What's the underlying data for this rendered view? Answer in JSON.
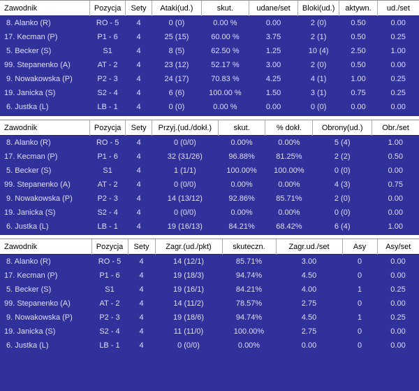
{
  "colors": {
    "background": "#31319c",
    "header_bg": "#ffffff",
    "header_text": "#000000",
    "row_text": "#dedef8",
    "header_separator": "#ababab",
    "header_top_border": "#8f8f8f"
  },
  "tables": [
    {
      "columns": [
        "Zawodnik",
        "Pozycja",
        "Sety",
        "Ataki(ud.)",
        "skut.",
        "udane/set",
        "Bloki(ud.)",
        "aktywn.",
        "ud./set"
      ],
      "rows": [
        [
          " 8. Alanko (R)",
          "RO - 5",
          "4",
          "0 (0)",
          "0.00 %",
          "0.00",
          "2 (0)",
          "0.50",
          "0.00"
        ],
        [
          "17. Kecman (P)",
          "P1 - 6",
          "4",
          "25 (15)",
          "60.00 %",
          "3.75",
          "2 (1)",
          "0.50",
          "0.25"
        ],
        [
          " 5. Becker (S)",
          "S1",
          "4",
          "8 (5)",
          "62.50 %",
          "1.25",
          "10 (4)",
          "2.50",
          "1.00"
        ],
        [
          "99. Stepanenko (A)",
          "AT - 2",
          "4",
          "23 (12)",
          "52.17 %",
          "3.00",
          "2 (0)",
          "0.50",
          "0.00"
        ],
        [
          " 9. Nowakowska (P)",
          "P2 - 3",
          "4",
          "24 (17)",
          "70.83 %",
          "4.25",
          "4 (1)",
          "1.00",
          "0.25"
        ],
        [
          "19. Janicka (S)",
          "S2 - 4",
          "4",
          "6 (6)",
          "100.00 %",
          "1.50",
          "3 (1)",
          "0.75",
          "0.25"
        ],
        [
          " 6. Justka (L)",
          "LB - 1",
          "4",
          "0 (0)",
          "0.00 %",
          "0.00",
          "0 (0)",
          "0.00",
          "0.00"
        ]
      ]
    },
    {
      "columns": [
        "Zawodnik",
        "Pozycja",
        "Sety",
        "Przyj.(ud./dokł.)",
        "skut.",
        "% dokł.",
        "Obrony(ud.)",
        "Obr./set"
      ],
      "rows": [
        [
          " 8. Alanko (R)",
          "RO - 5",
          "4",
          "0 (0/0)",
          "0.00%",
          "0.00%",
          "5 (4)",
          "1.00"
        ],
        [
          "17. Kecman (P)",
          "P1 - 6",
          "4",
          "32 (31/26)",
          "96.88%",
          "81.25%",
          "2 (2)",
          "0.50"
        ],
        [
          " 5. Becker (S)",
          "S1",
          "4",
          "1 (1/1)",
          "100.00%",
          "100.00%",
          "0 (0)",
          "0.00"
        ],
        [
          "99. Stepanenko (A)",
          "AT - 2",
          "4",
          "0 (0/0)",
          "0.00%",
          "0.00%",
          "4 (3)",
          "0.75"
        ],
        [
          " 9. Nowakowska (P)",
          "P2 - 3",
          "4",
          "14 (13/12)",
          "92.86%",
          "85.71%",
          "2 (0)",
          "0.00"
        ],
        [
          "19. Janicka (S)",
          "S2 - 4",
          "4",
          "0 (0/0)",
          "0.00%",
          "0.00%",
          "0 (0)",
          "0.00"
        ],
        [
          " 6. Justka (L)",
          "LB - 1",
          "4",
          "19 (16/13)",
          "84.21%",
          "68.42%",
          "6 (4)",
          "1.00"
        ]
      ]
    },
    {
      "columns": [
        "Zawodnik",
        "Pozycja",
        "Sety",
        "Zagr.(ud./pkt)",
        "skuteczn.",
        "Zagr.ud./set",
        "Asy",
        "Asy/set"
      ],
      "rows": [
        [
          " 8. Alanko (R)",
          "RO - 5",
          "4",
          "14 (12/1)",
          "85.71%",
          "3.00",
          "0",
          "0.00"
        ],
        [
          "17. Kecman (P)",
          "P1 - 6",
          "4",
          "19 (18/3)",
          "94.74%",
          "4.50",
          "0",
          "0.00"
        ],
        [
          " 5. Becker (S)",
          "S1",
          "4",
          "19 (16/1)",
          "84.21%",
          "4.00",
          "1",
          "0.25"
        ],
        [
          "99. Stepanenko (A)",
          "AT - 2",
          "4",
          "14 (11/2)",
          "78.57%",
          "2.75",
          "0",
          "0.00"
        ],
        [
          " 9. Nowakowska (P)",
          "P2 - 3",
          "4",
          "19 (18/6)",
          "94.74%",
          "4.50",
          "1",
          "0.25"
        ],
        [
          "19. Janicka (S)",
          "S2 - 4",
          "4",
          "11 (11/0)",
          "100.00%",
          "2.75",
          "0",
          "0.00"
        ],
        [
          " 6. Justka (L)",
          "LB - 1",
          "4",
          "0 (0/0)",
          "0.00%",
          "0.00",
          "0",
          "0.00"
        ]
      ]
    }
  ]
}
